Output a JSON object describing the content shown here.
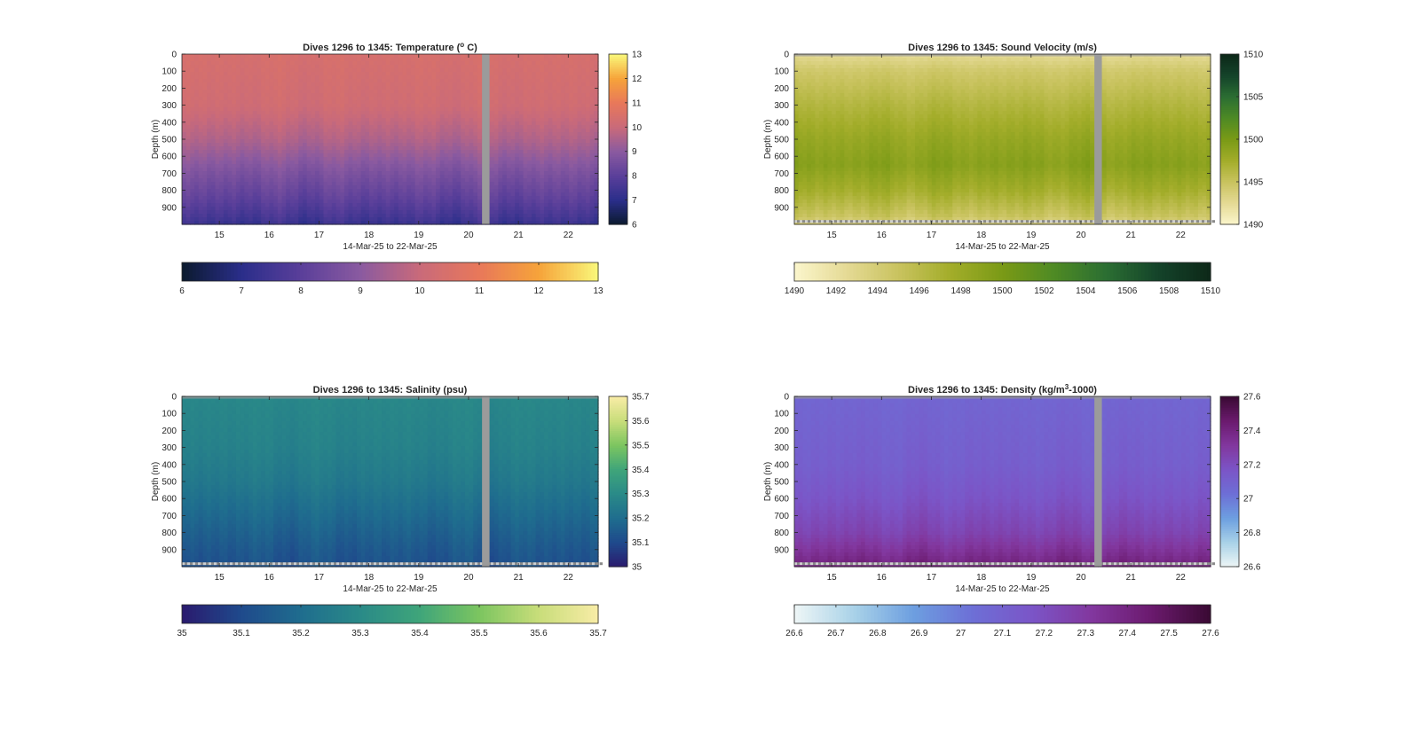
{
  "chart_data": [
    {
      "type": "heatmap",
      "title": "Dives 1296 to 1345: Temperature (",
      "title_sup": "o",
      "title_after": " C)",
      "variable": "temperature",
      "xlabel": "14-Mar-25 to 22-Mar-25",
      "ylabel": "Depth (m)",
      "xlim": [
        14.25,
        22.6
      ],
      "x_ticks": [
        15,
        16,
        17,
        18,
        19,
        20,
        21,
        22
      ],
      "ylim": [
        0,
        1000
      ],
      "y_ticks": [
        0,
        100,
        200,
        300,
        400,
        500,
        600,
        700,
        800,
        900
      ],
      "y_reversed": true,
      "data_gap": [
        20.27,
        20.42
      ],
      "clim": [
        6,
        13
      ],
      "colorbar_ticks": [
        6,
        7,
        8,
        9,
        10,
        11,
        12,
        13
      ],
      "colormap": [
        "#0b1a2e",
        "#2a2e8a",
        "#5a3f9a",
        "#8a5aa0",
        "#c96a7a",
        "#e8785a",
        "#f6a33a",
        "#f9f77a"
      ],
      "profile": {
        "depths": [
          0,
          300,
          500,
          700,
          850,
          950,
          1000
        ],
        "values": [
          10.4,
          10.2,
          9.6,
          8.7,
          8.1,
          7.6,
          7.3
        ]
      },
      "bottom_mask": false
    },
    {
      "type": "heatmap",
      "title": "Dives 1296 to 1345: Sound Velocity (m/s)",
      "title_sup": "",
      "title_after": "",
      "variable": "sound_velocity",
      "xlabel": "14-Mar-25 to 22-Mar-25",
      "ylabel": "Depth (m)",
      "xlim": [
        14.25,
        22.6
      ],
      "x_ticks": [
        15,
        16,
        17,
        18,
        19,
        20,
        21,
        22
      ],
      "ylim": [
        0,
        1000
      ],
      "y_ticks": [
        0,
        100,
        200,
        300,
        400,
        500,
        600,
        700,
        800,
        900
      ],
      "y_reversed": true,
      "data_gap": [
        20.27,
        20.42
      ],
      "clim": [
        1490,
        1510
      ],
      "colorbar_ticks": [
        1490,
        1492,
        1494,
        1496,
        1498,
        1500,
        1502,
        1504,
        1506,
        1508,
        1510
      ],
      "side_colorbar_ticks": [
        1490,
        1495,
        1500,
        1505,
        1510
      ],
      "colormap": [
        "#fbf6cc",
        "#e5da95",
        "#c9c35f",
        "#a3ad2a",
        "#7a9a16",
        "#4e8a24",
        "#2b6e32",
        "#14432a",
        "#0d2818"
      ],
      "profile": {
        "depths": [
          0,
          100,
          300,
          500,
          650,
          800,
          950,
          1000
        ],
        "values": [
          1492.5,
          1494.5,
          1496.5,
          1498.3,
          1499.2,
          1497.5,
          1495.0,
          1493.5
        ]
      },
      "bottom_mask": true
    },
    {
      "type": "heatmap",
      "title": "Dives 1296 to 1345: Salinity (psu)",
      "title_sup": "",
      "title_after": "",
      "variable": "salinity",
      "xlabel": "14-Mar-25 to 22-Mar-25",
      "ylabel": "Depth (m)",
      "xlim": [
        14.25,
        22.6
      ],
      "x_ticks": [
        15,
        16,
        17,
        18,
        19,
        20,
        21,
        22
      ],
      "ylim": [
        0,
        1000
      ],
      "y_ticks": [
        0,
        100,
        200,
        300,
        400,
        500,
        600,
        700,
        800,
        900
      ],
      "y_reversed": true,
      "data_gap": [
        20.27,
        20.42
      ],
      "clim": [
        35,
        35.7
      ],
      "colorbar_ticks": [
        35,
        35.1,
        35.2,
        35.3,
        35.4,
        35.5,
        35.6,
        35.7
      ],
      "colormap": [
        "#2a1a6e",
        "#1f4a8c",
        "#1f6d8e",
        "#2a8a88",
        "#3fa57a",
        "#7cc560",
        "#c8dd7a",
        "#f8eca6"
      ],
      "profile": {
        "depths": [
          0,
          300,
          500,
          700,
          900,
          1000
        ],
        "values": [
          35.29,
          35.27,
          35.24,
          35.19,
          35.14,
          35.12
        ]
      },
      "bottom_mask": true
    },
    {
      "type": "heatmap",
      "title": "Dives 1296 to 1345: Density (kg/m",
      "title_sup": "3",
      "title_after": "-1000)",
      "variable": "density",
      "xlabel": "14-Mar-25 to 22-Mar-25",
      "ylabel": "Depth (m)",
      "xlim": [
        14.25,
        22.6
      ],
      "x_ticks": [
        15,
        16,
        17,
        18,
        19,
        20,
        21,
        22
      ],
      "ylim": [
        0,
        1000
      ],
      "y_ticks": [
        0,
        100,
        200,
        300,
        400,
        500,
        600,
        700,
        800,
        900
      ],
      "y_reversed": true,
      "data_gap": [
        20.27,
        20.42
      ],
      "clim": [
        26.6,
        27.6
      ],
      "colorbar_ticks": [
        26.6,
        26.7,
        26.8,
        26.9,
        27,
        27.1,
        27.2,
        27.3,
        27.4,
        27.5,
        27.6
      ],
      "side_colorbar_ticks": [
        26.6,
        26.8,
        27,
        27.2,
        27.4,
        27.6
      ],
      "colormap": [
        "#eef6f6",
        "#a9d2e8",
        "#6d9fe0",
        "#6d6fd6",
        "#7b55c7",
        "#82379e",
        "#6b1a6e",
        "#3a0a33"
      ],
      "profile": {
        "depths": [
          0,
          400,
          600,
          800,
          900,
          1000
        ],
        "values": [
          27.08,
          27.12,
          27.17,
          27.25,
          27.33,
          27.42
        ]
      },
      "bottom_mask": true
    }
  ]
}
